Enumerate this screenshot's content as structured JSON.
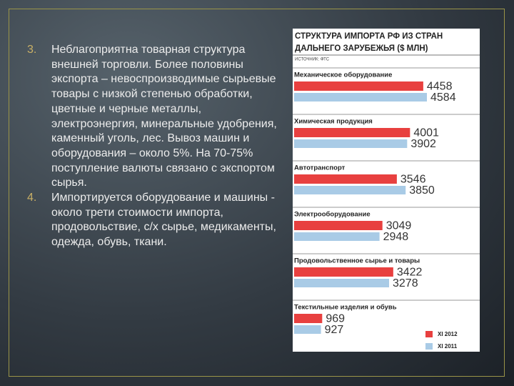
{
  "text": {
    "items": [
      {
        "number": "3.",
        "text": "Неблагоприятна товарная структура внешней торговли. Более половины экспорта – невоспроизводимые сырьевые товары с низкой степенью обработки, цветные и черные металлы, электроэнергия, минеральные удобрения, каменный уголь, лес. Вывоз машин и оборудования – около 5%. На 70-75% поступление валюты связано с экспортом сырья."
      },
      {
        "number": "4.",
        "text": "Импортируется оборудование и машины - около трети стоимости импорта, продовольствие, с/х сырье, медикаменты, одежда, обувь, ткани."
      }
    ]
  },
  "chart_data": {
    "type": "bar",
    "orientation": "horizontal",
    "title": "СТРУКТУРА ИМПОРТА РФ ИЗ СТРАН ДАЛЬНЕГО ЗАРУБЕЖЬЯ ($ МЛН)",
    "source": "ИСТОЧНИК: ФТС",
    "categories": [
      "Механическое оборудование",
      "Химическая продукция",
      "Автотранспорт",
      "Электрооборудование",
      "Продовольственное сырье и товары",
      "Текстильные изделия и обувь"
    ],
    "series": [
      {
        "name": "XI 2012",
        "color": "#e8403f",
        "values": [
          4458,
          4001,
          3546,
          3049,
          3422,
          969
        ]
      },
      {
        "name": "XI 2011",
        "color": "#a9cbe6",
        "values": [
          4584,
          3902,
          3850,
          2948,
          3278,
          927
        ]
      }
    ],
    "legend": "bottom-right"
  }
}
